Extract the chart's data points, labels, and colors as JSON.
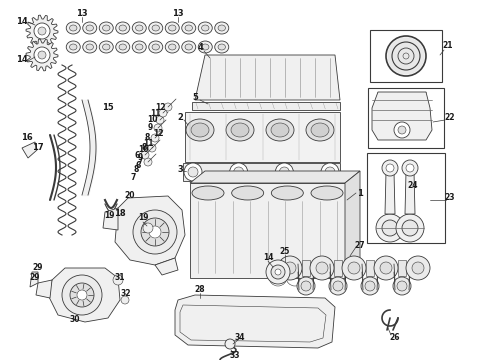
{
  "bg_color": "#ffffff",
  "lc": "#3a3a3a",
  "label_color": "#1a1a1a",
  "figsize": [
    4.9,
    3.6
  ],
  "dpi": 100
}
